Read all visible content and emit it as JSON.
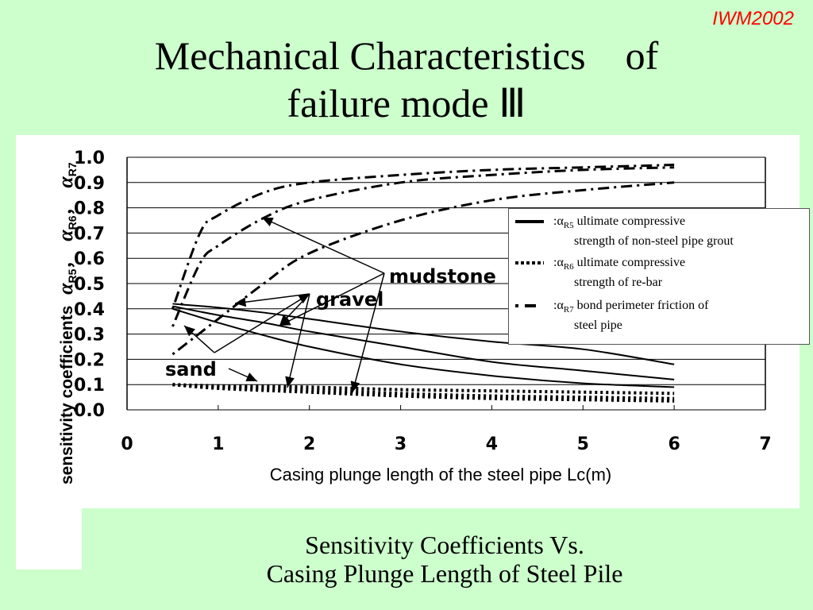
{
  "header": {
    "tag": "IWM2002",
    "title_line1": "Mechanical Characteristics　of",
    "title_line2": "failure mode Ⅲ"
  },
  "caption": {
    "line1": "Sensitivity Coefficients Vs.",
    "line2": "Casing Plunge Length of Steel Pile"
  },
  "chart_data": {
    "type": "line",
    "xlabel": "Casing plunge length of the steel pipe  Lc(m)",
    "ylabel_text": "sensitivity coefficients",
    "ylabel_symbols": [
      {
        "sym": "α",
        "sub": "R5"
      },
      {
        "sym": "α",
        "sub": "R6"
      },
      {
        "sym": "α",
        "sub": "R7"
      }
    ],
    "ylabel_sep": "，",
    "xlim": [
      0,
      7
    ],
    "ylim": [
      0,
      1.0
    ],
    "xticks": [
      "0",
      "1",
      "2",
      "3",
      "4",
      "5",
      "6",
      "7"
    ],
    "yticks": [
      "0.0",
      "0.1",
      "0.2",
      "0.3",
      "0.4",
      "0.5",
      "0.6",
      "0.7",
      "0.8",
      "0.9",
      "1.0"
    ],
    "grid": "horizontal",
    "legend": {
      "position": "right",
      "items": [
        {
          "style": "solid",
          "symbol": ":α",
          "sub": "R5",
          "text_a": "ultimate compressive",
          "text_b": "strength of non-steel pipe grout"
        },
        {
          "style": "dotted",
          "symbol": ":α",
          "sub": "R6",
          "text_a": "ultimate compressive",
          "text_b": "strength of re-bar"
        },
        {
          "style": "dashdot",
          "symbol": ":α",
          "sub": "R7",
          "text_a": "bond perimeter friction of",
          "text_b": "steel pipe"
        }
      ]
    },
    "annotations": [
      {
        "text": "mudstone"
      },
      {
        "text": "gravel"
      },
      {
        "text": "sand"
      }
    ],
    "series": [
      {
        "group": "R5",
        "style": "solid",
        "x": [
          0.5,
          1,
          1.5,
          2,
          3,
          4,
          5,
          6
        ],
        "y": [
          0.42,
          0.405,
          0.385,
          0.36,
          0.31,
          0.27,
          0.24,
          0.18
        ]
      },
      {
        "group": "R5",
        "style": "solid",
        "x": [
          0.5,
          1,
          1.5,
          2,
          3,
          4,
          5,
          6
        ],
        "y": [
          0.41,
          0.375,
          0.345,
          0.31,
          0.25,
          0.19,
          0.155,
          0.12
        ]
      },
      {
        "group": "R5",
        "style": "solid",
        "x": [
          0.5,
          1,
          1.5,
          2,
          3,
          4,
          5,
          6
        ],
        "y": [
          0.4,
          0.345,
          0.295,
          0.25,
          0.18,
          0.135,
          0.105,
          0.09
        ]
      },
      {
        "group": "R6",
        "style": "dotted",
        "x": [
          0.5,
          1,
          2,
          3,
          4,
          5,
          6
        ],
        "y": [
          0.1,
          0.095,
          0.09,
          0.08,
          0.075,
          0.07,
          0.065
        ]
      },
      {
        "group": "R6",
        "style": "dotted",
        "x": [
          0.5,
          1,
          2,
          3,
          4,
          5,
          6
        ],
        "y": [
          0.1,
          0.09,
          0.08,
          0.065,
          0.055,
          0.05,
          0.045
        ]
      },
      {
        "group": "R6",
        "style": "dotted",
        "x": [
          0.5,
          1,
          2,
          3,
          4,
          5,
          6
        ],
        "y": [
          0.1,
          0.085,
          0.07,
          0.055,
          0.045,
          0.04,
          0.035
        ]
      },
      {
        "group": "R7",
        "style": "dashdot",
        "x": [
          0.5,
          0.8,
          1.0,
          1.5,
          2,
          3,
          4,
          5,
          6
        ],
        "y": [
          0.4,
          0.7,
          0.77,
          0.86,
          0.9,
          0.93,
          0.95,
          0.96,
          0.97
        ]
      },
      {
        "group": "R7",
        "style": "dashdot",
        "x": [
          0.5,
          0.8,
          1.0,
          1.5,
          2,
          3,
          4,
          5,
          6
        ],
        "y": [
          0.33,
          0.58,
          0.65,
          0.76,
          0.83,
          0.9,
          0.93,
          0.95,
          0.96
        ]
      },
      {
        "group": "R7",
        "style": "dashdot",
        "x": [
          0.5,
          1.0,
          1.5,
          2,
          3,
          4,
          5,
          6
        ],
        "y": [
          0.22,
          0.36,
          0.5,
          0.62,
          0.75,
          0.83,
          0.87,
          0.9
        ]
      }
    ]
  }
}
